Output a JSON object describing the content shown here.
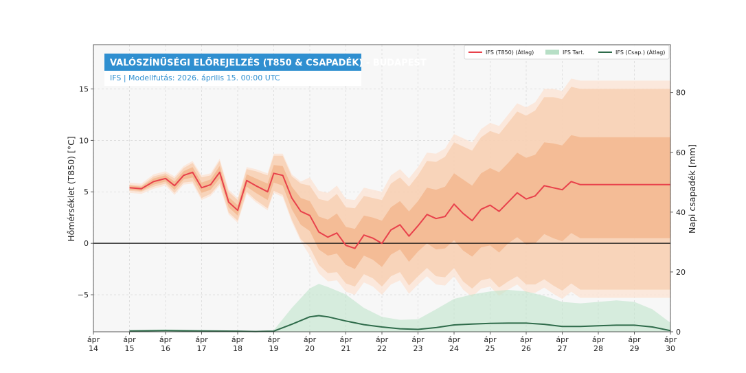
{
  "chart_data": {
    "type": "line",
    "title": "VALÓSZÍNŰSÉGI ELŐREJELZÉS (T850 & CSAPADÉK) - BUDAPEST",
    "subtitle": "IFS | Modellfutás: 2026. április 15. 00:00 UTC",
    "ylabel_left": "Hőmérséklet (T850) [°C]",
    "ylabel_right": "Napi csapadék [mm]",
    "ylim_left": [
      -8.6,
      19.3
    ],
    "ylim_right": [
      0,
      96
    ],
    "xlim": [
      14,
      30
    ],
    "x_ticks": [
      {
        "top": "ápr",
        "bottom": "14",
        "x": 14
      },
      {
        "top": "ápr",
        "bottom": "15",
        "x": 15
      },
      {
        "top": "ápr",
        "bottom": "16",
        "x": 16
      },
      {
        "top": "ápr",
        "bottom": "17",
        "x": 17
      },
      {
        "top": "ápr",
        "bottom": "18",
        "x": 18
      },
      {
        "top": "ápr",
        "bottom": "19",
        "x": 19
      },
      {
        "top": "ápr",
        "bottom": "20",
        "x": 20
      },
      {
        "top": "ápr",
        "bottom": "21",
        "x": 21
      },
      {
        "top": "ápr",
        "bottom": "22",
        "x": 22
      },
      {
        "top": "ápr",
        "bottom": "23",
        "x": 23
      },
      {
        "top": "ápr",
        "bottom": "24",
        "x": 24
      },
      {
        "top": "ápr",
        "bottom": "25",
        "x": 25
      },
      {
        "top": "ápr",
        "bottom": "26",
        "x": 26
      },
      {
        "top": "ápr",
        "bottom": "27",
        "x": 27
      },
      {
        "top": "ápr",
        "bottom": "28",
        "x": 28
      },
      {
        "top": "ápr",
        "bottom": "29",
        "x": 29
      },
      {
        "top": "ápr",
        "bottom": "30",
        "x": 30
      }
    ],
    "y_ticks_left": [
      {
        "label": "−5",
        "value": -5
      },
      {
        "label": "0",
        "value": 0
      },
      {
        "label": "5",
        "value": 5
      },
      {
        "label": "10",
        "value": 10
      },
      {
        "label": "15",
        "value": 15
      }
    ],
    "y_ticks_right": [
      {
        "label": "0",
        "value": 0
      },
      {
        "label": "20",
        "value": 20
      },
      {
        "label": "40",
        "value": 40
      },
      {
        "label": "60",
        "value": 60
      },
      {
        "label": "80",
        "value": 80
      }
    ],
    "legend": {
      "placement": "top-right",
      "entries": [
        {
          "label": "IFS (T850) (Átlag)",
          "style": "line",
          "color": "#e8414b"
        },
        {
          "label": "IFS Tart.",
          "style": "patch",
          "color": "#b7dfc6"
        },
        {
          "label": "IFS (Csap.) (Átlag)",
          "style": "line",
          "color": "#2e6b4a"
        }
      ]
    },
    "colors": {
      "t850_line": "#e8414b",
      "t850_band_inner": "#f3b48a",
      "t850_band_mid": "#f6c6a4",
      "t850_band_outer": "#fbe4d4",
      "precip_line": "#2e6b4a",
      "precip_band": "#bfe4cc",
      "title_bg": "#2f8fd0",
      "plot_bg": "#f7f7f7"
    },
    "grid": true,
    "zero_line": true,
    "series": [
      {
        "name": "IFS (T850) (Átlag)",
        "axis": "left",
        "x": [
          15,
          15.33,
          15.67,
          16,
          16.25,
          16.5,
          16.75,
          17,
          17.25,
          17.5,
          17.75,
          18,
          18.25,
          18.5,
          18.83,
          19,
          19.25,
          19.5,
          19.75,
          20,
          20.25,
          20.5,
          20.75,
          21,
          21.25,
          21.5,
          21.75,
          22,
          22.25,
          22.5,
          22.75,
          23,
          23.25,
          23.5,
          23.75,
          24,
          24.25,
          24.5,
          24.75,
          25,
          25.25,
          25.5,
          25.75,
          26,
          26.25,
          26.5,
          26.75,
          27,
          27.25,
          27.5,
          27.75,
          28,
          28.25,
          28.5,
          28.75,
          29,
          29.25,
          29.5,
          29.75,
          30
        ],
        "mean": [
          5.4,
          5.3,
          6.0,
          6.3,
          5.6,
          6.6,
          6.9,
          5.4,
          5.7,
          6.9,
          4.0,
          3.2,
          6.1,
          5.6,
          5.0,
          6.8,
          6.6,
          4.4,
          3.1,
          2.7,
          1.1,
          0.6,
          1.0,
          -0.2,
          -0.5,
          0.8,
          0.5,
          0.0,
          1.3,
          1.8,
          0.7,
          1.7,
          2.8,
          2.4,
          2.6,
          3.8,
          2.9,
          2.2,
          3.3,
          3.7,
          3.1,
          4.0,
          4.9,
          4.3,
          4.6,
          5.6,
          5.4,
          5.2,
          6.0,
          5.7,
          5.7,
          5.7,
          5.7,
          5.7,
          5.7,
          5.7,
          5.7,
          5.7,
          5.7,
          5.7
        ],
        "band_inner_low": [
          5.2,
          5.1,
          5.7,
          6.0,
          5.2,
          6.2,
          6.4,
          4.9,
          5.2,
          6.3,
          3.5,
          2.7,
          5.5,
          4.9,
          4.2,
          5.9,
          5.6,
          3.3,
          1.8,
          1.2,
          -0.6,
          -1.2,
          -1.0,
          -2.1,
          -2.5,
          -1.2,
          -1.6,
          -2.3,
          -1.1,
          -0.6,
          -1.8,
          -0.8,
          0.0,
          -0.6,
          -0.5,
          0.3,
          -0.7,
          -1.3,
          -0.4,
          -0.2,
          -0.9,
          0.0,
          0.6,
          -0.1,
          0.0,
          0.9,
          0.5,
          0.2,
          1.0,
          0.5,
          0.5,
          0.5,
          0.5,
          0.5,
          0.5,
          0.5,
          0.5,
          0.5,
          0.5,
          0.5
        ],
        "band_inner_high": [
          5.6,
          5.5,
          6.3,
          6.6,
          6.0,
          7.0,
          7.4,
          5.9,
          6.2,
          7.5,
          4.5,
          3.7,
          6.7,
          6.3,
          5.8,
          7.6,
          7.5,
          5.5,
          4.4,
          4.1,
          2.6,
          2.3,
          2.9,
          1.6,
          1.4,
          2.7,
          2.5,
          2.2,
          3.5,
          4.1,
          3.1,
          4.1,
          5.4,
          5.2,
          5.5,
          6.8,
          6.2,
          5.6,
          6.8,
          7.3,
          6.9,
          7.8,
          8.8,
          8.3,
          8.6,
          9.8,
          9.7,
          9.5,
          10.5,
          10.3,
          10.3,
          10.3,
          10.3,
          10.3,
          10.3,
          10.3,
          10.3,
          10.3,
          10.3,
          10.3
        ],
        "band_mid_low": [
          5.1,
          5.0,
          5.5,
          5.8,
          4.9,
          5.9,
          6.0,
          4.4,
          4.8,
          5.8,
          3.0,
          2.2,
          5.0,
          4.2,
          3.4,
          5.1,
          4.7,
          2.3,
          0.4,
          -0.4,
          -2.1,
          -2.9,
          -2.8,
          -3.9,
          -4.2,
          -3.0,
          -3.4,
          -4.2,
          -3.2,
          -2.8,
          -4.1,
          -3.2,
          -2.4,
          -3.2,
          -3.3,
          -2.4,
          -3.7,
          -4.4,
          -3.6,
          -3.4,
          -4.3,
          -3.7,
          -3.2,
          -4.0,
          -4.0,
          -3.5,
          -4.1,
          -4.6,
          -3.9,
          -4.5,
          -4.5,
          -4.5,
          -4.5,
          -4.5,
          -4.5,
          -4.5,
          -4.5,
          -4.5,
          -4.5,
          -4.5
        ],
        "band_mid_high": [
          5.7,
          5.6,
          6.5,
          6.8,
          6.3,
          7.3,
          7.8,
          6.4,
          6.6,
          8.0,
          5.0,
          4.2,
          7.2,
          7.0,
          6.6,
          8.5,
          8.5,
          6.5,
          5.8,
          5.6,
          4.3,
          4.1,
          4.8,
          3.5,
          3.4,
          4.6,
          4.4,
          4.2,
          5.8,
          6.4,
          5.5,
          6.6,
          8.0,
          7.9,
          8.4,
          9.8,
          9.4,
          9.0,
          10.3,
          10.9,
          10.6,
          11.7,
          12.8,
          12.4,
          12.9,
          14.2,
          14.2,
          14.0,
          15.2,
          15.0,
          15.0,
          15.0,
          15.0,
          15.0,
          15.0,
          15.0,
          15.0,
          15.0,
          15.0,
          15.0
        ]
      },
      {
        "name": "IFS (Csap.) (Átlag)",
        "axis": "right",
        "x": [
          15,
          16,
          17,
          18,
          18.5,
          19,
          19.5,
          20,
          20.25,
          20.5,
          21,
          21.5,
          22,
          22.5,
          23,
          23.5,
          24,
          24.5,
          25,
          25.5,
          26,
          26.5,
          27,
          27.5,
          28,
          28.5,
          29,
          29.5,
          30
        ],
        "mean": [
          0.3,
          0.4,
          0.3,
          0.2,
          0.1,
          0.2,
          2.5,
          5.0,
          5.4,
          5.0,
          3.6,
          2.4,
          1.6,
          1.0,
          0.8,
          1.4,
          2.3,
          2.6,
          2.8,
          2.9,
          2.9,
          2.5,
          1.8,
          1.8,
          2.0,
          2.2,
          2.2,
          1.6,
          0.4
        ],
        "band_high": [
          0.6,
          0.8,
          0.6,
          0.4,
          0.2,
          0.5,
          8.0,
          14.5,
          16.0,
          15.0,
          12.5,
          8.0,
          5.0,
          4.0,
          4.2,
          7.5,
          11.0,
          12.5,
          13.5,
          14.0,
          13.5,
          12.0,
          10.0,
          9.5,
          10.0,
          10.5,
          10.0,
          7.5,
          3.0
        ]
      }
    ]
  }
}
